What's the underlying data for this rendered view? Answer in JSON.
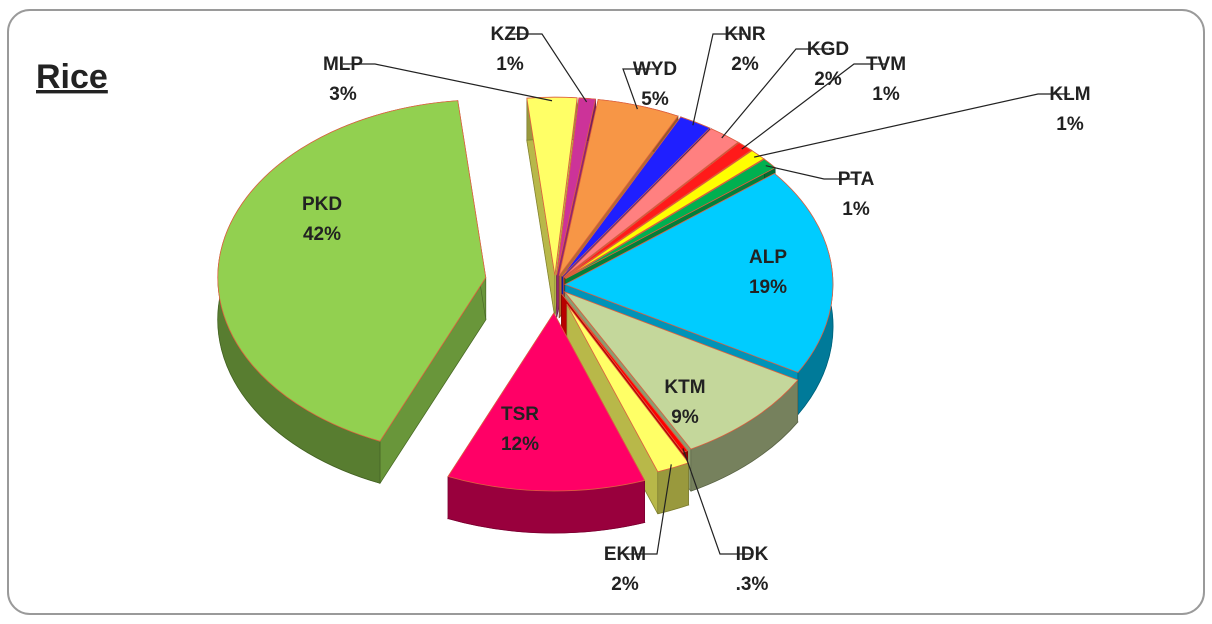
{
  "chart_data": {
    "type": "pie",
    "title": "Rice",
    "categories": [
      "MLP",
      "KZD",
      "WYD",
      "KNR",
      "KGD",
      "TVM",
      "KLM",
      "PTA",
      "ALP",
      "KTM",
      "IDK",
      "EKM",
      "TSR",
      "PKD"
    ],
    "values": [
      3,
      1,
      5,
      2,
      2,
      1,
      1,
      1,
      19,
      9,
      0.3,
      2,
      12,
      42
    ],
    "value_labels": [
      "3%",
      "1%",
      "5%",
      "2%",
      "2%",
      "1%",
      "1%",
      "1%",
      "19%",
      "9%",
      ".3%",
      "2%",
      "12%",
      "42%"
    ],
    "colors": [
      "#ffff66",
      "#cc3399",
      "#f79646",
      "#1f1fff",
      "#ff8080",
      "#ff1a1a",
      "#ffff00",
      "#00b050",
      "#00ccff",
      "#c4d79b",
      "#ff0000",
      "#ffff66",
      "#ff0066",
      "#92d050"
    ]
  }
}
